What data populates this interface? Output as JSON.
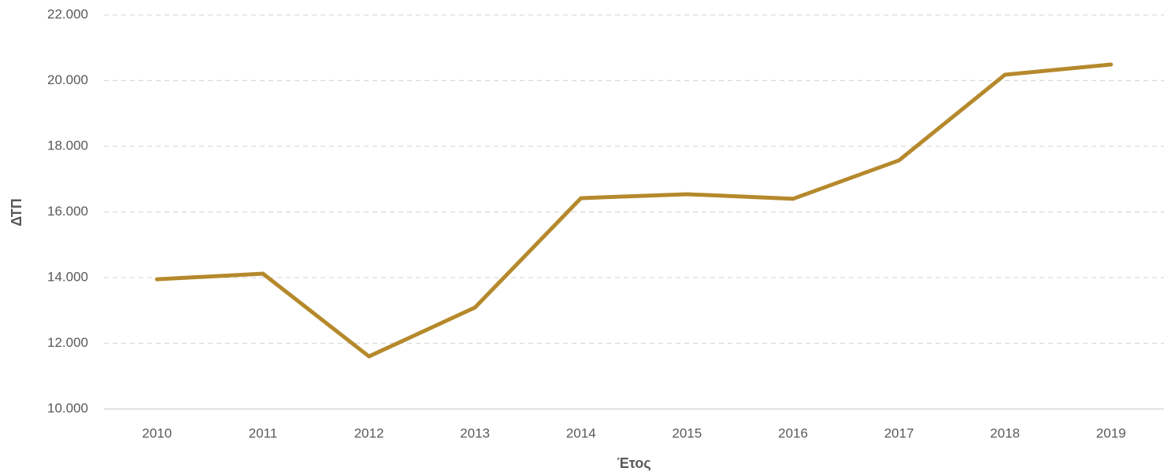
{
  "chart_data": {
    "type": "line",
    "x_label": "Έτος",
    "y_label": "ΔΤΠ",
    "categories": [
      "2010",
      "2011",
      "2012",
      "2013",
      "2014",
      "2015",
      "2016",
      "2017",
      "2018",
      "2019"
    ],
    "series": [
      {
        "name": "ΔΤΠ",
        "color": "#b5892c",
        "values": [
          13950,
          14120,
          11600,
          13090,
          16420,
          16540,
          16400,
          17570,
          20180,
          20490
        ]
      }
    ],
    "ylim": [
      10000,
      22000
    ],
    "yticks": [
      {
        "value": 10000,
        "label": "10.000"
      },
      {
        "value": 12000,
        "label": "12.000"
      },
      {
        "value": 14000,
        "label": "14.000"
      },
      {
        "value": 16000,
        "label": "16.000"
      },
      {
        "value": 18000,
        "label": "18.000"
      },
      {
        "value": 20000,
        "label": "20.000"
      },
      {
        "value": 22000,
        "label": "22.000"
      }
    ],
    "grid": true
  }
}
